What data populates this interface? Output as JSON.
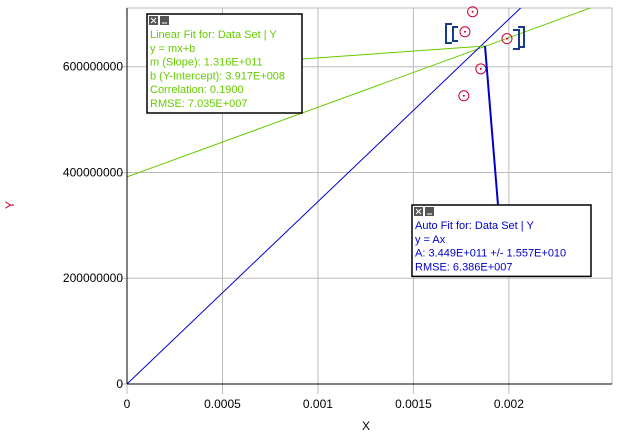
{
  "chart_data": {
    "type": "scatter",
    "x_label": "X",
    "y_label": "Y",
    "xlim": [
      0,
      0.00254
    ],
    "ylim": [
      0,
      711000000
    ],
    "xticks": [
      0,
      0.0005,
      0.001,
      0.0015,
      0.002
    ],
    "yticks": [
      0,
      200000000,
      400000000,
      600000000
    ],
    "grid": true,
    "series": [
      {
        "color": "#cc0033",
        "x": [
          0.001764,
          0.00177,
          0.00181,
          0.001853,
          0.00199
        ],
        "values": [
          545000000,
          666000000,
          704000000,
          596000000,
          653000000
        ]
      }
    ],
    "fits": [
      {
        "color": "#66cc00",
        "slope": 131600000000,
        "intercept": 391700000,
        "title": "Linear Fit for: Data Set | Y",
        "lines": [
          "y = mx+b",
          "m (Slope): 1.316E+011",
          "b (Y-Intercept): 3.917E+008",
          "Correlation: 0.1900",
          "RMSE: 7.035E+007"
        ]
      },
      {
        "color": "#0000cc",
        "slope": 344900000000,
        "title": "Auto Fit for: Data Set | Y",
        "lines": [
          "y = Ax",
          "A: 3.449E+011 +/- 1.557E+010",
          "RMSE: 6.386E+007"
        ]
      }
    ]
  }
}
